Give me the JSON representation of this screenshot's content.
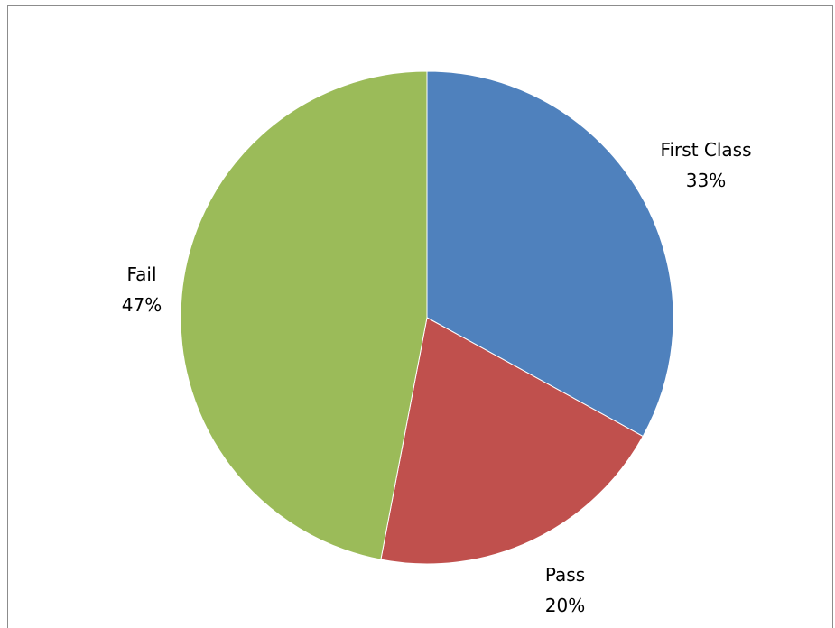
{
  "chart_data": {
    "type": "pie",
    "slices": [
      {
        "label": "First Class",
        "value": 33,
        "display": "33%",
        "color": "#4F81BD"
      },
      {
        "label": "Pass",
        "value": 20,
        "display": "20%",
        "color": "#C0504D"
      },
      {
        "label": "Fail",
        "value": 47,
        "display": "47%",
        "color": "#9BBB59"
      }
    ],
    "start_angle": "12 o'clock",
    "direction": "clockwise"
  }
}
